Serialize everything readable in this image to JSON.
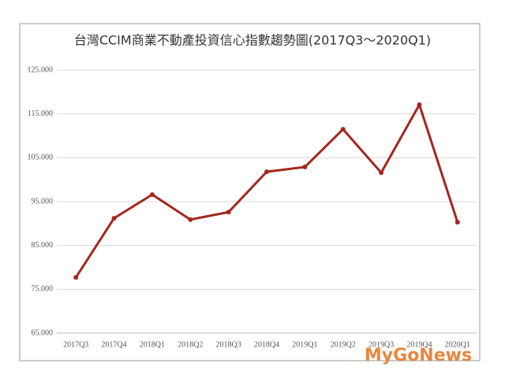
{
  "chart_data": {
    "type": "line",
    "title": "台灣CCIM商業不動產投資信心指數趨勢圖(2017Q3～2020Q1)",
    "categories": [
      "2017Q3",
      "2017Q4",
      "2018Q1",
      "2018Q2",
      "2018Q3",
      "2018Q4",
      "2019Q1",
      "2019Q2",
      "2019Q3",
      "2019Q4",
      "2020Q1"
    ],
    "series": [
      {
        "name": "CCIM",
        "color": "#a3271f",
        "values": [
          77.7,
          91.2,
          96.6,
          90.9,
          92.6,
          101.8,
          102.9,
          111.5,
          101.6,
          117.1,
          90.3
        ]
      }
    ],
    "ylim": [
      65,
      125
    ],
    "yticks": [
      {
        "value": 65,
        "label": "65.000"
      },
      {
        "value": 75,
        "label": "75.000"
      },
      {
        "value": 85,
        "label": "85.000"
      },
      {
        "value": 95,
        "label": "95.000"
      },
      {
        "value": 105,
        "label": "105.000"
      },
      {
        "value": 115,
        "label": "115.000"
      },
      {
        "value": 125,
        "label": "125.000"
      }
    ],
    "grid": true,
    "annotations": [
      "MyGoNews"
    ]
  }
}
